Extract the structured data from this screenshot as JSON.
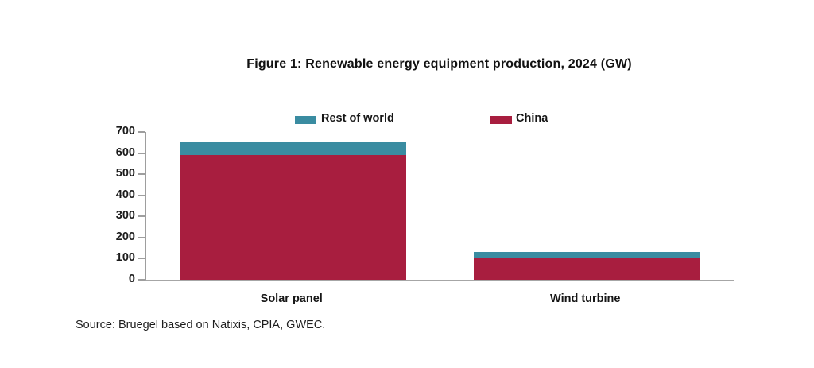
{
  "title": "Figure 1: Renewable energy equipment production, 2024 (GW)",
  "source": "Source: Bruegel based on Natixis, CPIA, GWEC.",
  "colors": {
    "china": "#A81E3F",
    "rest_of_world": "#3A8CA1",
    "axis": "#9E9E9E",
    "text": "#1B1B1B"
  },
  "legend": [
    {
      "label": "Rest of world",
      "color": "#3A8CA1"
    },
    {
      "label": "China",
      "color": "#A81E3F"
    }
  ],
  "chart_data": {
    "type": "bar",
    "stacked": true,
    "title": "Figure 1: Renewable energy equipment production, 2024 (GW)",
    "categories": [
      "Solar panel",
      "Wind turbine"
    ],
    "series": [
      {
        "name": "China",
        "color": "#A81E3F",
        "values": [
          590,
          100
        ]
      },
      {
        "name": "Rest of world",
        "color": "#3A8CA1",
        "values": [
          60,
          30
        ]
      }
    ],
    "totals": [
      650,
      130
    ],
    "xlabel": "",
    "ylabel": "",
    "ylim": [
      0,
      700
    ],
    "yticks": [
      0,
      100,
      200,
      300,
      400,
      500,
      600,
      700
    ],
    "grid": false,
    "legend_position": "top"
  }
}
